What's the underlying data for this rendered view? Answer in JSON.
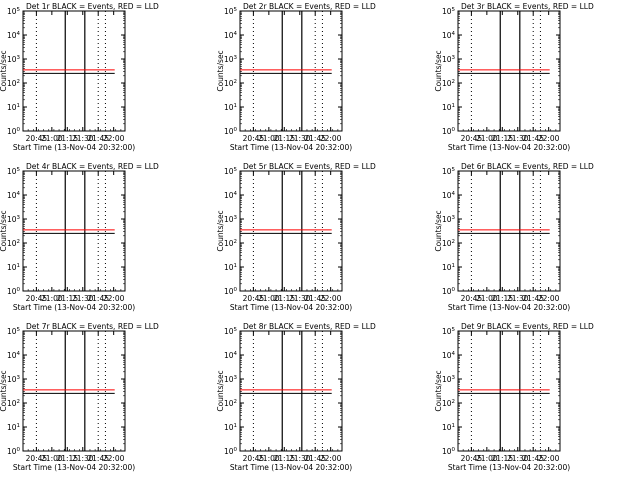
{
  "figure": {
    "background": "#ffffff",
    "axis_color": "#000000",
    "event_color": "#000000",
    "lld_color": "#ff0000"
  },
  "chart_data": [
    {
      "type": "line",
      "title": "Det 1r BLACK = Events, RED = LLD",
      "xlabel": "Start Time (13-Nov-04 20:32:00)",
      "ylabel": "Counts/sec",
      "yscale": "log",
      "ylim": [
        1,
        100000
      ],
      "xlim": [
        "20:32",
        "22:11"
      ],
      "xtick_labels": [
        "20:45",
        "21:00",
        "21:15",
        "21:30",
        "21:45",
        "22:00"
      ],
      "ytick_labels": [
        "10^0",
        "10^1",
        "10^2",
        "10^3",
        "10^4",
        "10^5"
      ],
      "dotted_vlines": [
        "20:45",
        "21:45",
        "21:52"
      ],
      "solid_vlines": [
        "21:13",
        "21:32"
      ],
      "series": [
        {
          "name": "Events",
          "color": "#000000"
        },
        {
          "name": "LLD",
          "color": "#ff0000"
        }
      ]
    },
    {
      "type": "line",
      "title": "Det 2r BLACK = Events, RED = LLD",
      "xlabel": "Start Time (13-Nov-04 20:32:00)",
      "ylabel": "Counts/sec",
      "yscale": "log",
      "ylim": [
        1,
        100000
      ],
      "xlim": [
        "20:32",
        "22:11"
      ],
      "xtick_labels": [
        "20:45",
        "21:00",
        "21:15",
        "21:30",
        "21:45",
        "22:00"
      ],
      "ytick_labels": [
        "10^0",
        "10^1",
        "10^2",
        "10^3",
        "10^4",
        "10^5"
      ],
      "dotted_vlines": [
        "20:45",
        "21:45",
        "21:52"
      ],
      "solid_vlines": [
        "21:13",
        "21:32"
      ],
      "series": [
        {
          "name": "Events",
          "color": "#000000"
        },
        {
          "name": "LLD",
          "color": "#ff0000"
        }
      ]
    },
    {
      "type": "line",
      "title": "Det 3r BLACK = Events, RED = LLD",
      "xlabel": "Start Time (13-Nov-04 20:32:00)",
      "ylabel": "Counts/sec",
      "yscale": "log",
      "ylim": [
        1,
        100000
      ],
      "xlim": [
        "20:32",
        "22:11"
      ],
      "xtick_labels": [
        "20:45",
        "21:00",
        "21:15",
        "21:30",
        "21:45",
        "22:00"
      ],
      "ytick_labels": [
        "10^0",
        "10^1",
        "10^2",
        "10^3",
        "10^4",
        "10^5"
      ],
      "dotted_vlines": [
        "20:45",
        "21:45",
        "21:52"
      ],
      "solid_vlines": [
        "21:13",
        "21:32"
      ],
      "series": [
        {
          "name": "Events",
          "color": "#000000"
        },
        {
          "name": "LLD",
          "color": "#ff0000"
        }
      ]
    },
    {
      "type": "line",
      "title": "Det 4r BLACK = Events, RED = LLD",
      "xlabel": "Start Time (13-Nov-04 20:32:00)",
      "ylabel": "Counts/sec",
      "yscale": "log",
      "ylim": [
        1,
        100000
      ],
      "xlim": [
        "20:32",
        "22:11"
      ],
      "xtick_labels": [
        "20:45",
        "21:00",
        "21:15",
        "21:30",
        "21:45",
        "22:00"
      ],
      "ytick_labels": [
        "10^0",
        "10^1",
        "10^2",
        "10^3",
        "10^4",
        "10^5"
      ],
      "dotted_vlines": [
        "20:45",
        "21:45",
        "21:52"
      ],
      "solid_vlines": [
        "21:13",
        "21:32"
      ],
      "series": [
        {
          "name": "Events",
          "color": "#000000"
        },
        {
          "name": "LLD",
          "color": "#ff0000"
        }
      ]
    },
    {
      "type": "line",
      "title": "Det 5r BLACK = Events, RED = LLD",
      "xlabel": "Start Time (13-Nov-04 20:32:00)",
      "ylabel": "Counts/sec",
      "yscale": "log",
      "ylim": [
        1,
        100000
      ],
      "xlim": [
        "20:32",
        "22:11"
      ],
      "xtick_labels": [
        "20:45",
        "21:00",
        "21:15",
        "21:30",
        "21:45",
        "22:00"
      ],
      "ytick_labels": [
        "10^0",
        "10^1",
        "10^2",
        "10^3",
        "10^4",
        "10^5"
      ],
      "dotted_vlines": [
        "20:45",
        "21:45",
        "21:52"
      ],
      "solid_vlines": [
        "21:13",
        "21:32"
      ],
      "series": [
        {
          "name": "Events",
          "color": "#000000"
        },
        {
          "name": "LLD",
          "color": "#ff0000"
        }
      ]
    },
    {
      "type": "line",
      "title": "Det 6r BLACK = Events, RED = LLD",
      "xlabel": "Start Time (13-Nov-04 20:32:00)",
      "ylabel": "Counts/sec",
      "yscale": "log",
      "ylim": [
        1,
        100000
      ],
      "xlim": [
        "20:32",
        "22:11"
      ],
      "xtick_labels": [
        "20:45",
        "21:00",
        "21:15",
        "21:30",
        "21:45",
        "22:00"
      ],
      "ytick_labels": [
        "10^0",
        "10^1",
        "10^2",
        "10^3",
        "10^4",
        "10^5"
      ],
      "dotted_vlines": [
        "20:45",
        "21:45",
        "21:52"
      ],
      "solid_vlines": [
        "21:13",
        "21:32"
      ],
      "series": [
        {
          "name": "Events",
          "color": "#000000"
        },
        {
          "name": "LLD",
          "color": "#ff0000"
        }
      ]
    },
    {
      "type": "line",
      "title": "Det 7r BLACK = Events, RED = LLD",
      "xlabel": "Start Time (13-Nov-04 20:32:00)",
      "ylabel": "Counts/sec",
      "yscale": "log",
      "ylim": [
        1,
        100000
      ],
      "xlim": [
        "20:32",
        "22:11"
      ],
      "xtick_labels": [
        "20:45",
        "21:00",
        "21:15",
        "21:30",
        "21:45",
        "22:00"
      ],
      "ytick_labels": [
        "10^0",
        "10^1",
        "10^2",
        "10^3",
        "10^4",
        "10^5"
      ],
      "dotted_vlines": [
        "20:45",
        "21:45",
        "21:52"
      ],
      "solid_vlines": [
        "21:13",
        "21:32"
      ],
      "series": [
        {
          "name": "Events",
          "color": "#000000"
        },
        {
          "name": "LLD",
          "color": "#ff0000"
        }
      ]
    },
    {
      "type": "line",
      "title": "Det 8r BLACK = Events, RED = LLD",
      "xlabel": "Start Time (13-Nov-04 20:32:00)",
      "ylabel": "Counts/sec",
      "yscale": "log",
      "ylim": [
        1,
        100000
      ],
      "xlim": [
        "20:32",
        "22:11"
      ],
      "xtick_labels": [
        "20:45",
        "21:00",
        "21:15",
        "21:30",
        "21:45",
        "22:00"
      ],
      "ytick_labels": [
        "10^0",
        "10^1",
        "10^2",
        "10^3",
        "10^4",
        "10^5"
      ],
      "dotted_vlines": [
        "20:45",
        "21:45",
        "21:52"
      ],
      "solid_vlines": [
        "21:13",
        "21:32"
      ],
      "series": [
        {
          "name": "Events",
          "color": "#000000"
        },
        {
          "name": "LLD",
          "color": "#ff0000"
        }
      ]
    },
    {
      "type": "line",
      "title": "Det 9r BLACK = Events, RED = LLD",
      "xlabel": "Start Time (13-Nov-04 20:32:00)",
      "ylabel": "Counts/sec",
      "yscale": "log",
      "ylim": [
        1,
        100000
      ],
      "xlim": [
        "20:32",
        "22:11"
      ],
      "xtick_labels": [
        "20:45",
        "21:00",
        "21:15",
        "21:30",
        "21:45",
        "22:00"
      ],
      "ytick_labels": [
        "10^0",
        "10^1",
        "10^2",
        "10^3",
        "10^4",
        "10^5"
      ],
      "dotted_vlines": [
        "20:45",
        "21:45",
        "21:52"
      ],
      "solid_vlines": [
        "21:13",
        "21:32"
      ],
      "series": [
        {
          "name": "Events",
          "color": "#000000"
        },
        {
          "name": "LLD",
          "color": "#ff0000"
        }
      ]
    }
  ]
}
